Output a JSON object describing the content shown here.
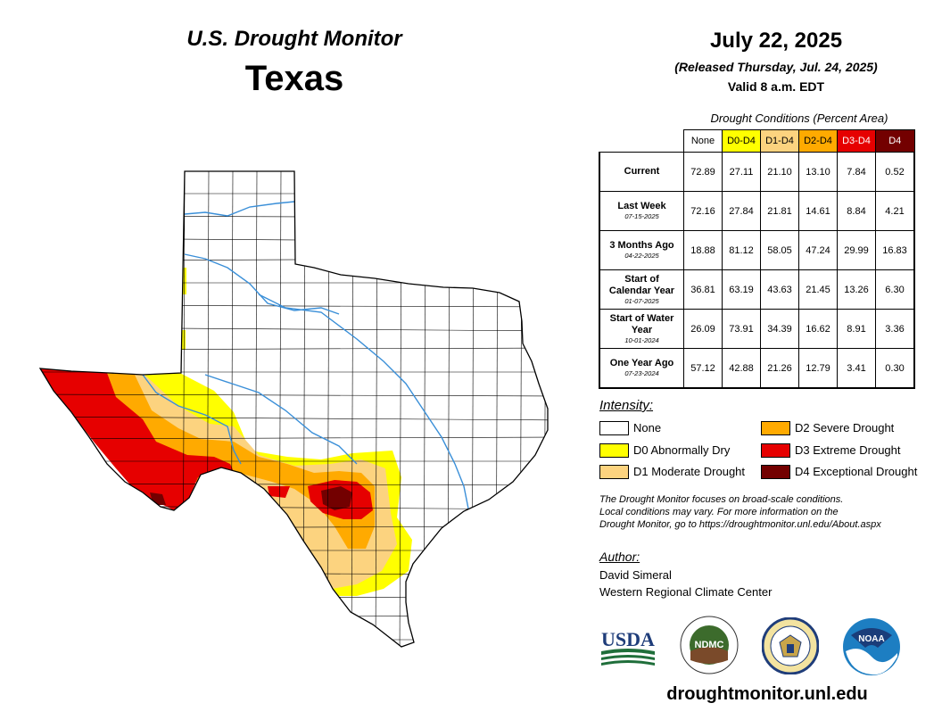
{
  "header": {
    "title": "U.S. Drought Monitor",
    "state": "Texas",
    "date": "July 22, 2025",
    "released": "(Released Thursday, Jul. 24, 2025)",
    "valid": "Valid 8 a.m. EDT"
  },
  "table": {
    "caption": "Drought Conditions (Percent Area)",
    "columns": [
      {
        "label": "None",
        "color": "#ffffff",
        "text_color": "#000000"
      },
      {
        "label": "D0-D4",
        "color": "#ffff00",
        "text_color": "#000000"
      },
      {
        "label": "D1-D4",
        "color": "#fcd37f",
        "text_color": "#000000"
      },
      {
        "label": "D2-D4",
        "color": "#ffaa00",
        "text_color": "#000000"
      },
      {
        "label": "D3-D4",
        "color": "#e60000",
        "text_color": "#ffffff"
      },
      {
        "label": "D4",
        "color": "#730000",
        "text_color": "#ffffff"
      }
    ],
    "rows": [
      {
        "label": "Current",
        "sub": "",
        "values": [
          "72.89",
          "27.11",
          "21.10",
          "13.10",
          "7.84",
          "0.52"
        ]
      },
      {
        "label": "Last Week",
        "sub": "07-15-2025",
        "values": [
          "72.16",
          "27.84",
          "21.81",
          "14.61",
          "8.84",
          "4.21"
        ]
      },
      {
        "label": "3 Months Ago",
        "sub": "04-22-2025",
        "values": [
          "18.88",
          "81.12",
          "58.05",
          "47.24",
          "29.99",
          "16.83"
        ]
      },
      {
        "label": "Start of Calendar Year",
        "sub": "01-07-2025",
        "values": [
          "36.81",
          "63.19",
          "43.63",
          "21.45",
          "13.26",
          "6.30"
        ]
      },
      {
        "label": "Start of Water Year",
        "sub": "10-01-2024",
        "values": [
          "26.09",
          "73.91",
          "34.39",
          "16.62",
          "8.91",
          "3.36"
        ]
      },
      {
        "label": "One Year Ago",
        "sub": "07-23-2024",
        "values": [
          "57.12",
          "42.88",
          "21.26",
          "12.79",
          "3.41",
          "0.30"
        ]
      }
    ]
  },
  "legend": {
    "title": "Intensity:",
    "items": [
      {
        "label": "None",
        "color": "#ffffff"
      },
      {
        "label": "D0 Abnormally Dry",
        "color": "#ffff00"
      },
      {
        "label": "D1 Moderate Drought",
        "color": "#fcd37f"
      },
      {
        "label": "D2 Severe Drought",
        "color": "#ffaa00"
      },
      {
        "label": "D3 Extreme Drought",
        "color": "#e60000"
      },
      {
        "label": "D4 Exceptional Drought",
        "color": "#730000"
      }
    ]
  },
  "note": {
    "line1": "The Drought Monitor focuses on broad-scale conditions.",
    "line2": "Local conditions may vary. For more information on the",
    "line3": "Drought Monitor, go to https://droughtmonitor.unl.edu/About.aspx"
  },
  "author": {
    "title": "Author:",
    "name": "David Simeral",
    "org": "Western Regional Climate Center"
  },
  "logos": {
    "usda": "USDA",
    "ndmc": "NDMC",
    "noaa": "NOAA"
  },
  "website": "droughtmonitor.unl.edu",
  "map": {
    "icons": [
      "texas-outline",
      "county-grid",
      "river-lines"
    ],
    "water_color": "#3a8fd8"
  }
}
